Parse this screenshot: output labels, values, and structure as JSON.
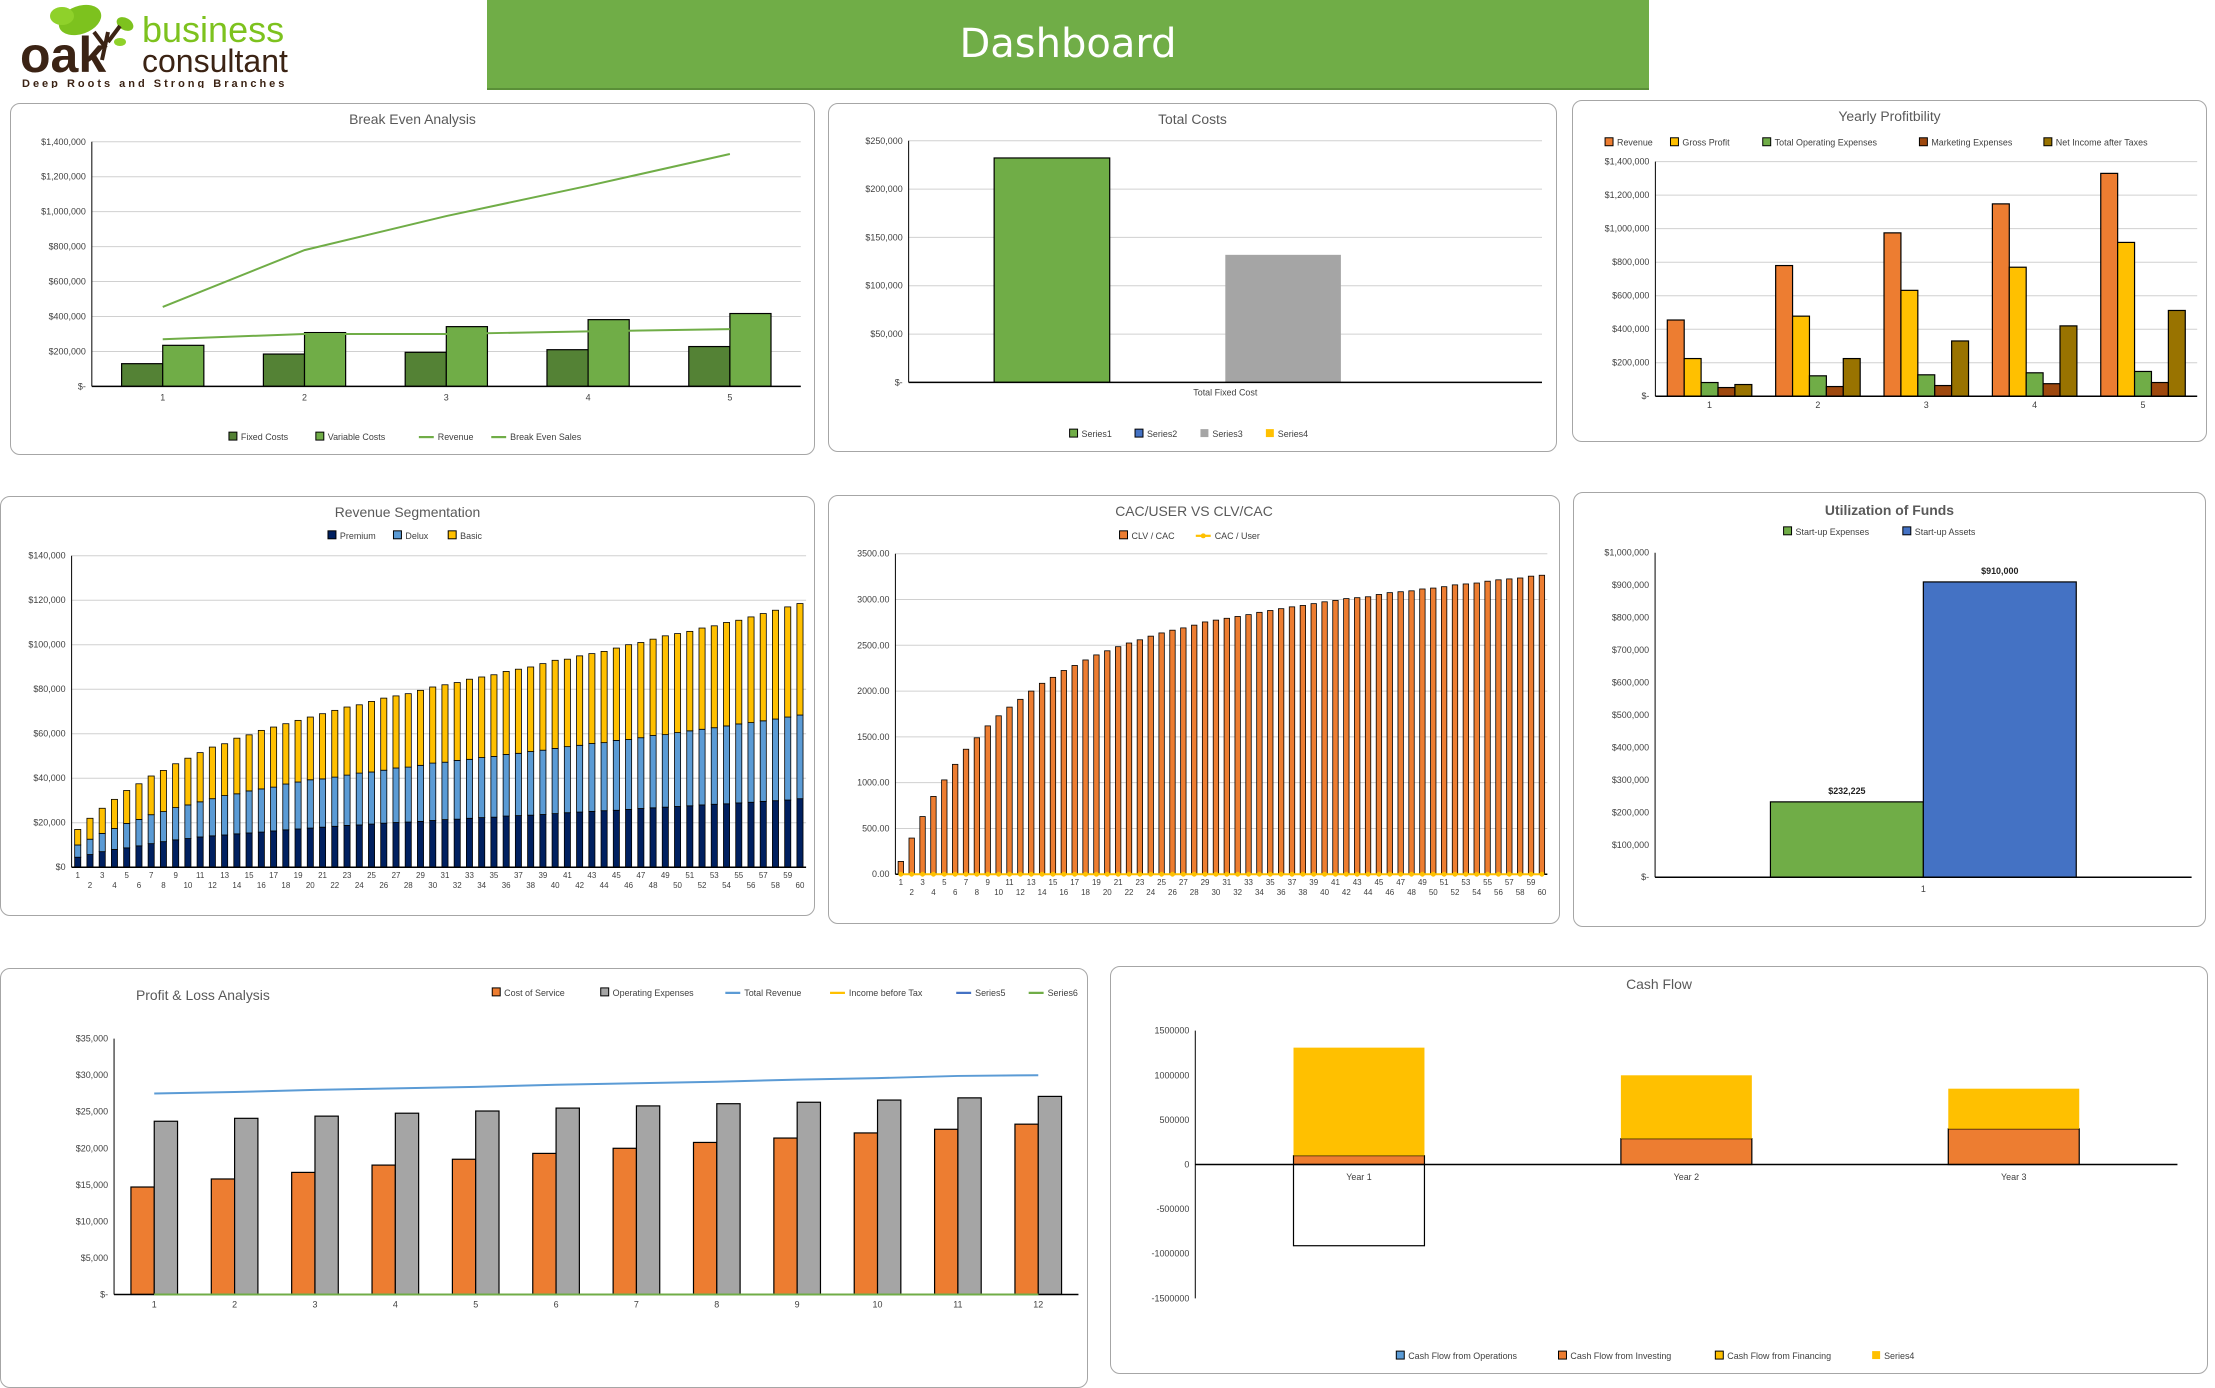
{
  "logo": {
    "word": "oak",
    "line1": "business",
    "line2": "consultant",
    "tagline": "Deep Roots and Strong Branches"
  },
  "header": {
    "title": "Dashboard",
    "color": "#70ad47"
  },
  "chart_data": [
    {
      "type": "bar+line",
      "title": "Break Even Analysis",
      "categories": [
        "1",
        "2",
        "3",
        "4",
        "5"
      ],
      "ylim": [
        0,
        1400000
      ],
      "ytick_labels": [
        "$-",
        "$200,000",
        "$400,000",
        "$600,000",
        "$800,000",
        "$1,000,000",
        "$1,200,000",
        "$1,400,000"
      ],
      "grid": true,
      "legend": "bottom",
      "series": [
        {
          "name": "Fixed Costs",
          "kind": "bar",
          "color": "#548235",
          "values": [
            130000,
            185000,
            195000,
            210000,
            228000
          ]
        },
        {
          "name": "Variable Costs",
          "kind": "bar",
          "color": "#70ad47",
          "values": [
            235000,
            308000,
            342000,
            382000,
            417000
          ]
        },
        {
          "name": "Revenue",
          "kind": "line",
          "color": "#70ad47",
          "values": [
            455000,
            780000,
            975000,
            1148000,
            1330000
          ]
        },
        {
          "name": "Break Even Sales",
          "kind": "line",
          "color": "#70ad47",
          "values": [
            270000,
            300000,
            300000,
            315000,
            328000
          ]
        }
      ]
    },
    {
      "type": "bar",
      "title": "Total Costs",
      "categories": [
        "Total Fixed Cost"
      ],
      "ylim": [
        0,
        250000
      ],
      "ytick_labels": [
        "$-",
        "$50,000",
        "$100,000",
        "$150,000",
        "$200,000",
        "$250,000"
      ],
      "grid": true,
      "legend": "bottom",
      "series": [
        {
          "name": "Series1",
          "kind": "bar",
          "color": "#70ad47",
          "values": [
            232225
          ]
        },
        {
          "name": "Series2",
          "kind": "bar",
          "color": "#4472c4",
          "values": [
            0
          ]
        },
        {
          "name": "Series3",
          "kind": "bar",
          "color": "#a5a5a5",
          "values": [
            132000
          ]
        },
        {
          "name": "Series4",
          "kind": "bar",
          "color": "#ffc000",
          "values": [
            0
          ]
        }
      ]
    },
    {
      "type": "bar",
      "title": "Yearly Profitbility",
      "categories": [
        "1",
        "2",
        "3",
        "4",
        "5"
      ],
      "ylim": [
        0,
        1400000
      ],
      "ytick_labels": [
        "$-",
        "$200,000",
        "$400,000",
        "$600,000",
        "$800,000",
        "$1,000,000",
        "$1,200,000",
        "$1,400,000"
      ],
      "grid": true,
      "legend": "top",
      "series": [
        {
          "name": "Revenue",
          "kind": "bar",
          "color": "#ed7d31",
          "values": [
            455000,
            780000,
            975000,
            1148000,
            1330000
          ]
        },
        {
          "name": "Gross Profit",
          "kind": "bar",
          "color": "#ffc000",
          "values": [
            225000,
            478000,
            632000,
            770000,
            918000
          ]
        },
        {
          "name": "Total Operating Expenses",
          "kind": "bar",
          "color": "#70ad47",
          "values": [
            82000,
            122000,
            128000,
            140000,
            148000
          ]
        },
        {
          "name": "Marketing Expenses",
          "kind": "bar",
          "color": "#9e480e",
          "values": [
            52000,
            58000,
            64000,
            75000,
            82000
          ]
        },
        {
          "name": "Net Income after Taxes",
          "kind": "bar",
          "color": "#997300",
          "values": [
            70000,
            225000,
            330000,
            420000,
            512000
          ]
        }
      ]
    },
    {
      "type": "stacked-bar",
      "title": "Revenue Segmentation",
      "categories": [
        "1",
        "2",
        "3",
        "4",
        "5",
        "6",
        "7",
        "8",
        "9",
        "10",
        "11",
        "12",
        "13",
        "14",
        "15",
        "16",
        "17",
        "18",
        "19",
        "20",
        "21",
        "22",
        "23",
        "24",
        "25",
        "26",
        "27",
        "28",
        "29",
        "30",
        "31",
        "32",
        "33",
        "34",
        "35",
        "36",
        "37",
        "38",
        "39",
        "40",
        "41",
        "42",
        "43",
        "44",
        "45",
        "46",
        "47",
        "48",
        "49",
        "50",
        "51",
        "52",
        "53",
        "54",
        "55",
        "56",
        "57",
        "58",
        "59",
        "60"
      ],
      "ylim": [
        0,
        140000
      ],
      "ytick_labels": [
        "$0",
        "$20,000",
        "$40,000",
        "$60,000",
        "$80,000",
        "$100,000",
        "$120,000",
        "$140,000"
      ],
      "grid": true,
      "legend": "top",
      "series": [
        {
          "name": "Premium",
          "kind": "bar",
          "color": "#002060",
          "values": [
            4500,
            5700,
            7000,
            8000,
            8700,
            9600,
            10600,
            11500,
            12300,
            12900,
            13600,
            14100,
            14500,
            15000,
            15400,
            15800,
            16300,
            16800,
            17200,
            17600,
            18000,
            18400,
            18800,
            19000,
            19400,
            19800,
            20100,
            20300,
            20600,
            21000,
            21400,
            21600,
            22000,
            22300,
            22500,
            23000,
            23200,
            23400,
            23700,
            24100,
            24500,
            24800,
            25100,
            25400,
            25600,
            26000,
            26400,
            26700,
            27000,
            27300,
            27600,
            28000,
            28300,
            28500,
            28900,
            29200,
            29600,
            29900,
            30200,
            30800
          ]
        },
        {
          "name": "Delux",
          "kind": "bar",
          "color": "#5b9bd5",
          "values": [
            5500,
            6900,
            8200,
            9400,
            11000,
            11900,
            13000,
            13500,
            14500,
            15100,
            15800,
            16700,
            17700,
            18000,
            18900,
            19400,
            19700,
            20600,
            21100,
            21700,
            21700,
            22100,
            22600,
            23300,
            23400,
            23800,
            24500,
            24700,
            25200,
            25800,
            25800,
            26400,
            26500,
            27000,
            27300,
            27700,
            28000,
            28600,
            28900,
            29300,
            29700,
            30000,
            30500,
            30600,
            31400,
            31400,
            31800,
            32500,
            32600,
            33200,
            33700,
            34000,
            34400,
            35000,
            35500,
            35800,
            36200,
            36700,
            37300,
            37600
          ]
        },
        {
          "name": "Basic",
          "kind": "bar",
          "color": "#ffc000",
          "values": [
            7000,
            9400,
            11300,
            13100,
            14800,
            16000,
            17400,
            18500,
            19700,
            21000,
            22100,
            23200,
            23300,
            25000,
            25200,
            26300,
            27000,
            27100,
            27700,
            28200,
            29300,
            30000,
            30600,
            30700,
            31700,
            32400,
            32400,
            33000,
            33700,
            34200,
            34800,
            35000,
            36000,
            36200,
            36700,
            37300,
            37800,
            38000,
            38900,
            39600,
            39300,
            40200,
            40400,
            41000,
            41500,
            42600,
            42800,
            43300,
            44400,
            44500,
            44700,
            45500,
            45800,
            46500,
            46600,
            47500,
            48200,
            48900,
            49500,
            50100
          ]
        }
      ]
    },
    {
      "type": "bar+line",
      "title": "CAC/USER VS CLV/CAC",
      "categories": [
        "1",
        "2",
        "3",
        "4",
        "5",
        "6",
        "7",
        "8",
        "9",
        "10",
        "11",
        "12",
        "13",
        "14",
        "15",
        "16",
        "17",
        "18",
        "19",
        "20",
        "21",
        "22",
        "23",
        "24",
        "25",
        "26",
        "27",
        "28",
        "29",
        "30",
        "31",
        "32",
        "33",
        "34",
        "35",
        "36",
        "37",
        "38",
        "39",
        "40",
        "41",
        "42",
        "43",
        "44",
        "45",
        "46",
        "47",
        "48",
        "49",
        "50",
        "51",
        "52",
        "53",
        "54",
        "55",
        "56",
        "57",
        "58",
        "59",
        "60"
      ],
      "ylim": [
        0,
        3500
      ],
      "ytick_labels": [
        "0.00",
        "500.00",
        "1000.00",
        "1500.00",
        "2000.00",
        "2500.00",
        "3000.00",
        "3500.00"
      ],
      "grid": true,
      "legend": "top",
      "series": [
        {
          "name": "CLV / CAC",
          "kind": "bar",
          "color": "#ed7d31",
          "values": [
            140,
            395,
            630,
            850,
            1030,
            1200,
            1365,
            1490,
            1620,
            1730,
            1825,
            1910,
            2000,
            2085,
            2150,
            2225,
            2280,
            2340,
            2395,
            2440,
            2485,
            2525,
            2560,
            2600,
            2635,
            2665,
            2690,
            2720,
            2755,
            2775,
            2795,
            2815,
            2835,
            2860,
            2880,
            2900,
            2920,
            2935,
            2955,
            2975,
            2990,
            3010,
            3020,
            3030,
            3055,
            3075,
            3085,
            3095,
            3115,
            3125,
            3140,
            3160,
            3170,
            3180,
            3200,
            3215,
            3225,
            3235,
            3255,
            3265
          ]
        },
        {
          "name": "CAC / User",
          "kind": "line",
          "marker": true,
          "color": "#ffc000",
          "values": [
            0,
            0,
            0,
            0,
            0,
            0,
            0,
            0,
            0,
            0,
            0,
            0,
            0,
            0,
            0,
            0,
            0,
            0,
            0,
            0,
            0,
            0,
            0,
            0,
            0,
            0,
            0,
            0,
            0,
            0,
            0,
            0,
            0,
            0,
            0,
            0,
            0,
            0,
            0,
            0,
            0,
            0,
            0,
            0,
            0,
            0,
            0,
            0,
            0,
            0,
            0,
            0,
            0,
            0,
            0,
            0,
            0,
            0,
            0,
            0
          ]
        }
      ]
    },
    {
      "type": "bar",
      "title": "Utilization of Funds",
      "categories": [
        "1"
      ],
      "ylim": [
        0,
        1000000
      ],
      "ytick_labels": [
        "$-",
        "$100,000",
        "$200,000",
        "$300,000",
        "$400,000",
        "$500,000",
        "$600,000",
        "$700,000",
        "$800,000",
        "$900,000",
        "$1,000,000"
      ],
      "grid": false,
      "legend": "top",
      "series": [
        {
          "name": "Start-up Expenses",
          "kind": "bar",
          "color": "#70ad47",
          "values": [
            232225
          ],
          "data_labels": [
            "$232,225"
          ]
        },
        {
          "name": "Start-up Assets",
          "kind": "bar",
          "color": "#4472c4",
          "values": [
            910000
          ],
          "data_labels": [
            "$910,000"
          ]
        }
      ]
    },
    {
      "type": "bar+line",
      "title": "Profit & Loss Analysis",
      "categories": [
        "1",
        "2",
        "3",
        "4",
        "5",
        "6",
        "7",
        "8",
        "9",
        "10",
        "11",
        "12"
      ],
      "ylim": [
        0,
        35000
      ],
      "ytick_labels": [
        "$-",
        "$5,000",
        "$10,000",
        "$15,000",
        "$20,000",
        "$25,000",
        "$30,000",
        "$35,000"
      ],
      "grid": false,
      "legend": "top-right",
      "series": [
        {
          "name": "Cost of Service",
          "kind": "bar",
          "color": "#ed7d31",
          "values": [
            14700,
            15800,
            16700,
            17700,
            18500,
            19300,
            20000,
            20800,
            21400,
            22100,
            22600,
            23300
          ]
        },
        {
          "name": "Operating Expenses",
          "kind": "bar",
          "color": "#a5a5a5",
          "values": [
            23700,
            24100,
            24400,
            24800,
            25100,
            25500,
            25800,
            26100,
            26300,
            26600,
            26900,
            27100
          ]
        },
        {
          "name": "Total Revenue",
          "kind": "line",
          "color": "#5b9bd5",
          "values": [
            27500,
            27700,
            28000,
            28200,
            28400,
            28700,
            28900,
            29100,
            29400,
            29600,
            29900,
            30000
          ]
        },
        {
          "name": "Income before Tax",
          "kind": "line",
          "color": "#ffc000",
          "values": [
            0,
            0,
            0,
            0,
            0,
            0,
            0,
            0,
            0,
            0,
            0,
            0
          ]
        },
        {
          "name": "Series5",
          "kind": "line",
          "color": "#4472c4",
          "values": [
            0,
            0,
            0,
            0,
            0,
            0,
            0,
            0,
            0,
            0,
            0,
            0
          ]
        },
        {
          "name": "Series6",
          "kind": "line",
          "color": "#70ad47",
          "values": [
            0,
            0,
            0,
            0,
            0,
            0,
            0,
            0,
            0,
            0,
            0,
            0
          ]
        }
      ]
    },
    {
      "type": "stacked-bar",
      "title": "Cash Flow",
      "categories": [
        "Year 1",
        "Year 2",
        "Year 3"
      ],
      "ylim": [
        -1500000,
        1500000
      ],
      "ytick_labels": [
        "-1500000",
        "-1000000",
        "-500000",
        "0",
        "500000",
        "1000000",
        "1500000"
      ],
      "grid": false,
      "legend": "bottom",
      "series": [
        {
          "name": "Cash Flow from Operations",
          "kind": "bar",
          "color": "#5b9bd5",
          "values": [
            0,
            0,
            0
          ]
        },
        {
          "name": "Cash Flow from Investing",
          "kind": "bar",
          "color": "#ed7d31",
          "values": [
            100000,
            290000,
            400000
          ]
        },
        {
          "name": "Cash Flow from Financing",
          "kind": "bar",
          "color": "#ffc000",
          "invert_if_negative": true,
          "values": [
            -910000,
            0,
            0
          ]
        },
        {
          "name": "Series4",
          "kind": "bar",
          "color": "#ffc000",
          "values": [
            1210000,
            710000,
            450000
          ]
        }
      ]
    }
  ]
}
